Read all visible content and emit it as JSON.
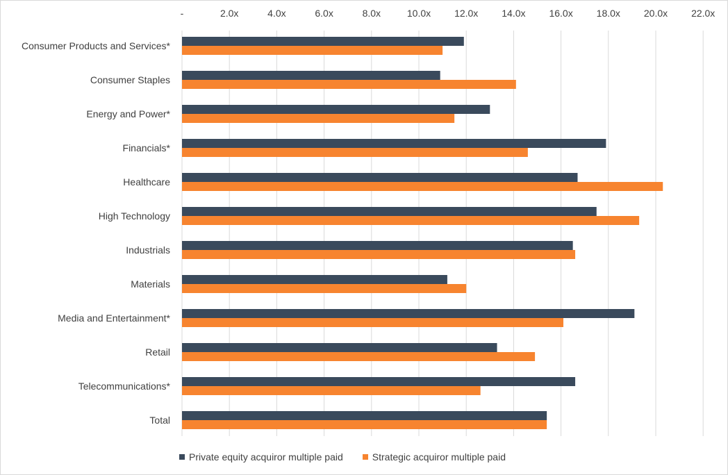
{
  "chart_data": {
    "type": "bar",
    "orientation": "horizontal",
    "title": "",
    "xlabel": "",
    "ylabel": "",
    "xlim": [
      0,
      22
    ],
    "x_ticks": [
      {
        "value": 0,
        "label": "-"
      },
      {
        "value": 2,
        "label": "2.0x"
      },
      {
        "value": 4,
        "label": "4.0x"
      },
      {
        "value": 6,
        "label": "6.0x"
      },
      {
        "value": 8,
        "label": "8.0x"
      },
      {
        "value": 10,
        "label": "10.0x"
      },
      {
        "value": 12,
        "label": "12.0x"
      },
      {
        "value": 14,
        "label": "14.0x"
      },
      {
        "value": 16,
        "label": "16.0x"
      },
      {
        "value": 18,
        "label": "18.0x"
      },
      {
        "value": 20,
        "label": "20.0x"
      },
      {
        "value": 22,
        "label": "22.0x"
      }
    ],
    "x_axis_position": "top",
    "grid": true,
    "legend_position": "bottom-left",
    "categories": [
      "Consumer Products and Services*",
      "Consumer Staples",
      "Energy and Power*",
      "Financials*",
      "Healthcare",
      "High Technology",
      "Industrials",
      "Materials",
      "Media and Entertainment*",
      "Retail",
      "Telecommunications*",
      "Total"
    ],
    "series": [
      {
        "name": "Private equity acquiror multiple paid",
        "color": "#3a4a5c",
        "values": [
          11.9,
          10.9,
          13.0,
          17.9,
          16.7,
          17.5,
          16.5,
          11.2,
          19.1,
          13.3,
          16.6,
          15.4
        ]
      },
      {
        "name": "Strategic acquiror multiple paid",
        "color": "#f7842f",
        "values": [
          11.0,
          14.1,
          11.5,
          14.6,
          20.3,
          19.3,
          16.6,
          12.0,
          16.1,
          14.9,
          12.6,
          15.4
        ]
      }
    ]
  }
}
